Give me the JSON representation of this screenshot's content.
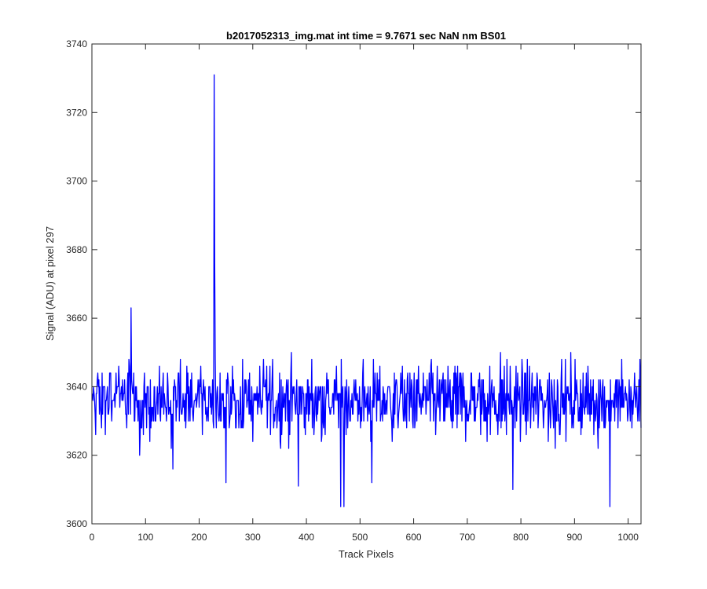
{
  "chart_data": {
    "type": "line",
    "title": "b2017052313_img.mat int time = 9.7671 sec  NaN nm BS01",
    "xlabel": "Track Pixels",
    "ylabel": "Signal (ADU) at pixel 297",
    "xlim": [
      0,
      1024
    ],
    "ylim": [
      3600,
      3740
    ],
    "xticks": [
      "0",
      "100",
      "200",
      "300",
      "400",
      "500",
      "600",
      "700",
      "800",
      "900",
      "1000"
    ],
    "yticks": [
      "3600",
      "3620",
      "3640",
      "3660",
      "3680",
      "3700",
      "3720",
      "3740"
    ],
    "grid": false,
    "legend": "none",
    "series": [
      {
        "color": "#0000ff",
        "x_start": 1,
        "x_step": 1,
        "noise_band": [
          3612,
          3662
        ],
        "baseline": 3636,
        "peaks": [
          {
            "x": 73,
            "y": 3663
          },
          {
            "x": 228,
            "y": 3731
          },
          {
            "x": 229,
            "y": 3676
          },
          {
            "x": 464,
            "y": 3605
          },
          {
            "x": 470,
            "y": 3605
          },
          {
            "x": 966,
            "y": 3605
          },
          {
            "x": 785,
            "y": 3610
          },
          {
            "x": 151,
            "y": 3616
          },
          {
            "x": 385,
            "y": 3611
          },
          {
            "x": 522,
            "y": 3612
          },
          {
            "x": 250,
            "y": 3612
          }
        ]
      }
    ]
  }
}
